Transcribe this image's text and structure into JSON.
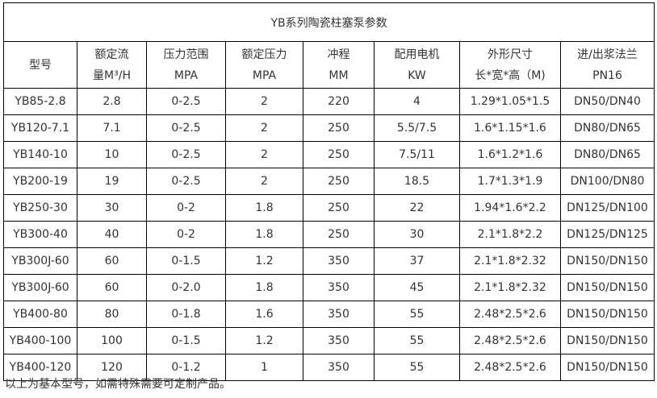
{
  "title": "YB系列陶瓷柱塞泵参数",
  "headers": [
    [
      "型号",
      ""
    ],
    [
      "额定流",
      "量M³/H"
    ],
    [
      "压力范围",
      "MPA"
    ],
    [
      "额定压力",
      "MPA"
    ],
    [
      "冲程",
      "MM"
    ],
    [
      "配用电机",
      "KW"
    ],
    [
      "外形尺寸",
      "长*宽*高（M)"
    ],
    [
      "进/出浆法兰",
      "PN16"
    ]
  ],
  "rows": [
    [
      "YB85-2.8",
      "2.8",
      "0-2.5",
      "2",
      "220",
      "4",
      "1.29*1.05*1.5",
      "DN50/DN40"
    ],
    [
      "YB120-7.1",
      "7.1",
      "0-2.5",
      "2",
      "250",
      "5.5/7.5",
      "1.6*1.15*1.6",
      "DN80/DN65"
    ],
    [
      "YB140-10",
      "10",
      "0-2.5",
      "2",
      "250",
      "7.5/11",
      "1.6*1.2*1.6",
      "DN80/DN65"
    ],
    [
      "YB200-19",
      "19",
      "0-2.5",
      "2",
      "250",
      "18.5",
      "1.7*1.3*1.9",
      "DN100/DN80"
    ],
    [
      "YB250-30",
      "30",
      "0-2",
      "1.8",
      "250",
      "22",
      "1.94*1.6*2.2",
      "DN125/DN100"
    ],
    [
      "YB300-40",
      "40",
      "0-2",
      "1.8",
      "250",
      "30",
      "2.1*1.8*2.2",
      "DN125/DN125"
    ],
    [
      "YB300J-60",
      "60",
      "0-1.5",
      "1.2",
      "350",
      "37",
      "2.1*1.8*2.32",
      "DN150/DN150"
    ],
    [
      "YB300J-60",
      "60",
      "0-2.0",
      "1.8",
      "350",
      "45",
      "2.1*1.8*2.32",
      "DN150/DN150"
    ],
    [
      "YB400-80",
      "80",
      "0-1.8",
      "1.6",
      "350",
      "55",
      "2.48*2.5*2.6",
      "DN150/DN150"
    ],
    [
      "YB400-100",
      "100",
      "0-1.5",
      "1.2",
      "350",
      "55",
      "2.48*2.5*2.6",
      "DN150/DN150"
    ],
    [
      "YB400-120",
      "120",
      "0-1.2",
      "1",
      "350",
      "55",
      "2.48*2.5*2.6",
      "DN150/DN150"
    ]
  ],
  "footer": "以上为基本型号，如需特殊需要可定制产品。"
}
